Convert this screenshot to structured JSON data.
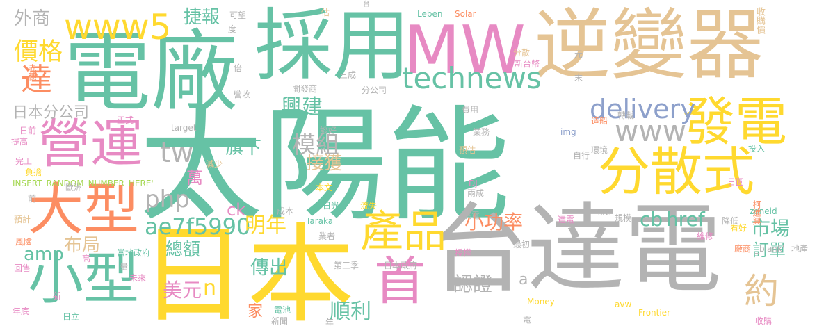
{
  "colors": {
    "green": "#66c2a5",
    "orange": "#fc8d62",
    "blue": "#8da0cb",
    "pink": "#e78ac3",
    "lime": "#a6d854",
    "yellow": "#ffd92f",
    "tan": "#e5c494",
    "gray": "#b3b3b3"
  },
  "words": [
    {
      "text": "太陽能",
      "color": "green"
    },
    {
      "text": "台達電",
      "color": "gray"
    },
    {
      "text": "日本",
      "color": "yellow"
    },
    {
      "text": "電廠",
      "color": "green"
    },
    {
      "text": "逆變器",
      "color": "tan"
    },
    {
      "text": "採用",
      "color": "green"
    },
    {
      "text": "MW",
      "color": "pink"
    },
    {
      "text": "營運",
      "color": "pink"
    },
    {
      "text": "大型",
      "color": "orange"
    },
    {
      "text": "小型",
      "color": "green"
    },
    {
      "text": "分散式",
      "color": "yellow"
    },
    {
      "text": "發電",
      "color": "yellow"
    },
    {
      "text": "首",
      "color": "pink"
    },
    {
      "text": "www5",
      "color": "yellow"
    },
    {
      "text": "達",
      "color": "orange"
    },
    {
      "text": "產品",
      "color": "yellow"
    },
    {
      "text": "technews",
      "color": "green"
    },
    {
      "text": "www",
      "color": "gray"
    },
    {
      "text": "約",
      "color": "tan"
    },
    {
      "text": "tw",
      "color": "gray"
    },
    {
      "text": "價格",
      "color": "yellow"
    },
    {
      "text": "delivery",
      "color": "blue"
    },
    {
      "text": "php",
      "color": "gray"
    },
    {
      "text": "ae7f5990",
      "color": "green"
    },
    {
      "text": "模組",
      "color": "gray"
    },
    {
      "text": "興建",
      "color": "green"
    },
    {
      "text": "明年",
      "color": "yellow"
    },
    {
      "text": "市場",
      "color": "green"
    },
    {
      "text": "傳出",
      "color": "green"
    },
    {
      "text": "href",
      "color": "green"
    },
    {
      "text": "小功率",
      "color": "orange"
    },
    {
      "text": "布局",
      "color": "tan"
    },
    {
      "text": "amp",
      "color": "green"
    },
    {
      "text": "順利",
      "color": "green"
    },
    {
      "text": "總額",
      "color": "green"
    },
    {
      "text": "美元",
      "color": "pink"
    },
    {
      "text": "認證",
      "color": "gray"
    },
    {
      "text": "捷報",
      "color": "green"
    },
    {
      "text": "旗下",
      "color": "green"
    },
    {
      "text": "接獲",
      "color": "tan"
    },
    {
      "text": "訂單",
      "color": "green"
    },
    {
      "text": "外商",
      "color": "gray"
    },
    {
      "text": "日本分公司",
      "color": "gray"
    },
    {
      "text": "cb",
      "color": "green"
    },
    {
      "text": "ck",
      "color": "pink"
    },
    {
      "text": "n",
      "color": "yellow"
    },
    {
      "text": "萬",
      "color": "pink"
    },
    {
      "text": "家",
      "color": "orange"
    },
    {
      "text": "a",
      "color": "gray"
    },
    {
      "text": "可望",
      "color": "gray"
    },
    {
      "text": "度",
      "color": "gray"
    },
    {
      "text": "估",
      "color": "tan"
    },
    {
      "text": "台",
      "color": "gray"
    },
    {
      "text": "Leben",
      "color": "green"
    },
    {
      "text": "Solar",
      "color": "orange"
    },
    {
      "text": "收購價",
      "color": "tan"
    },
    {
      "text": "分散",
      "color": "tan"
    },
    {
      "text": "元",
      "color": "gray"
    },
    {
      "text": "新台幣",
      "color": "pink"
    },
    {
      "text": "末",
      "color": "gray"
    },
    {
      "text": "轉載",
      "color": "gray"
    },
    {
      "text": "赤穗",
      "color": "orange"
    },
    {
      "text": "倍",
      "color": "gray"
    },
    {
      "text": "三成",
      "color": "gray"
    },
    {
      "text": "開發商",
      "color": "gray"
    },
    {
      "text": "分公司",
      "color": "gray"
    },
    {
      "text": "營收",
      "color": "gray"
    },
    {
      "text": "費用",
      "color": "gray"
    },
    {
      "text": "正式",
      "color": "pink"
    },
    {
      "text": "日前",
      "color": "pink"
    },
    {
      "text": "target",
      "color": "gray"
    },
    {
      "text": "談好",
      "color": "gray"
    },
    {
      "text": "業務",
      "color": "gray"
    },
    {
      "text": "造船",
      "color": "orange"
    },
    {
      "text": "提高",
      "color": "pink"
    },
    {
      "text": "img",
      "color": "blue"
    },
    {
      "text": "預估",
      "color": "tan"
    },
    {
      "text": "環境",
      "color": "gray"
    },
    {
      "text": "投入",
      "color": "green"
    },
    {
      "text": "完工",
      "color": "pink"
    },
    {
      "text": "減少",
      "color": "tan"
    },
    {
      "text": "自行",
      "color": "gray"
    },
    {
      "text": "負擔",
      "color": "yellow"
    },
    {
      "text": "INSERT_RANDOM_NUMBER_HERE'",
      "color": "lime"
    },
    {
      "text": "DJ",
      "color": "pink"
    },
    {
      "text": "歐洲",
      "color": "gray"
    },
    {
      "text": "本文",
      "color": "yellow"
    },
    {
      "text": "兩成",
      "color": "gray"
    },
    {
      "text": "日圓",
      "color": "pink"
    },
    {
      "text": "前",
      "color": "gray"
    },
    {
      "text": "日光",
      "color": "green"
    },
    {
      "text": "流失",
      "color": "yellow"
    },
    {
      "text": "zoneid",
      "color": "green"
    },
    {
      "text": "柯進興",
      "color": "orange"
    },
    {
      "text": "預計",
      "color": "tan"
    },
    {
      "text": "成本",
      "color": "gray"
    },
    {
      "text": "供電",
      "color": "gray"
    },
    {
      "text": "規模",
      "color": "gray"
    },
    {
      "text": "降低",
      "color": "gray"
    },
    {
      "text": "src",
      "color": "gray"
    },
    {
      "text": "達電",
      "color": "pink"
    },
    {
      "text": "看好",
      "color": "yellow"
    },
    {
      "text": "Taraka",
      "color": "green"
    },
    {
      "text": "業者",
      "color": "gray"
    },
    {
      "text": "維修",
      "color": "pink"
    },
    {
      "text": "風險",
      "color": "orange"
    },
    {
      "text": "當地政府",
      "color": "green"
    },
    {
      "text": "最初",
      "color": "gray"
    },
    {
      "text": "廠商",
      "color": "orange"
    },
    {
      "text": "回售",
      "color": "pink"
    },
    {
      "text": "高",
      "color": "pink"
    },
    {
      "text": "第三季",
      "color": "gray"
    },
    {
      "text": "日本政府",
      "color": "gray"
    },
    {
      "text": "_blank'",
      "color": "gray"
    },
    {
      "text": "地產",
      "color": "gray"
    },
    {
      "text": "授權",
      "color": "pink"
    },
    {
      "text": "量",
      "color": "gray"
    },
    {
      "text": "未來",
      "color": "pink"
    },
    {
      "text": "新",
      "color": "pink"
    },
    {
      "text": "Money",
      "color": "yellow"
    },
    {
      "text": "avw",
      "color": "yellow"
    },
    {
      "text": "電池",
      "color": "green"
    },
    {
      "text": "年底",
      "color": "pink"
    },
    {
      "text": "日立",
      "color": "green"
    },
    {
      "text": "新聞",
      "color": "gray"
    },
    {
      "text": "年",
      "color": "gray"
    },
    {
      "text": "Frontier",
      "color": "yellow"
    },
    {
      "text": "收購",
      "color": "pink"
    },
    {
      "text": "電",
      "color": "gray"
    }
  ]
}
